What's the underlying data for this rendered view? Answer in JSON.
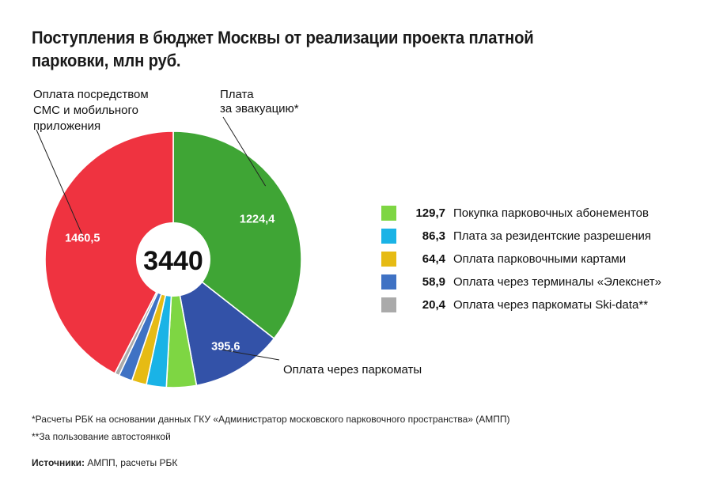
{
  "chart_data": {
    "type": "pie",
    "title": "Поступления в бюджет Москвы от реализации проекта платной парковки, млн руб.",
    "total": "3440",
    "slices": [
      {
        "key": "evac",
        "label": "Плата за эвакуацию*",
        "value": 1224.4,
        "value_label": "1224,4",
        "color": "#3fa535"
      },
      {
        "key": "meters",
        "label": "Оплата через паркоматы",
        "value": 395.6,
        "value_label": "395,6",
        "color": "#3352a8"
      },
      {
        "key": "abon",
        "label": "Покупка парковочных абонементов",
        "value": 129.7,
        "value_label": "129,7",
        "color": "#7ed643"
      },
      {
        "key": "resid",
        "label": "Плата за резидентские разрешения",
        "value": 86.3,
        "value_label": "86,3",
        "color": "#1ab3e6"
      },
      {
        "key": "cards",
        "label": "Оплата парковочными картами",
        "value": 64.4,
        "value_label": "64,4",
        "color": "#e6bb14"
      },
      {
        "key": "term",
        "label": "Оплата через терминалы «Элекснет»",
        "value": 58.9,
        "value_label": "58,9",
        "color": "#3f72c4"
      },
      {
        "key": "ski",
        "label": "Оплата через паркоматы Ski-data**",
        "value": 20.4,
        "value_label": "20,4",
        "color": "#aaaaaa"
      },
      {
        "key": "sms",
        "label": "Оплата посредством СМС и мобильного приложения",
        "value": 1460.5,
        "value_label": "1460,5",
        "color": "#ef3340"
      }
    ],
    "callouts": {
      "sms": [
        "Оплата посредством",
        "СМС и мобильного",
        "приложения"
      ],
      "evac": [
        "Плата",
        "за эвакуацию*"
      ],
      "meters": [
        "Оплата через паркоматы"
      ]
    },
    "legend": [
      {
        "value": "129,7",
        "label": "Покупка парковочных абонементов",
        "color": "#7ed643"
      },
      {
        "value": "86,3",
        "label": "Плата за резидентские разрешения",
        "color": "#1ab3e6"
      },
      {
        "value": "64,4",
        "label": "Оплата парковочными картами",
        "color": "#e6bb14"
      },
      {
        "value": "58,9",
        "label": "Оплата через терминалы «Элекснет»",
        "color": "#3f72c4"
      },
      {
        "value": "20,4",
        "label": "Оплата через паркоматы Ski-data**",
        "color": "#aaaaaa"
      }
    ]
  },
  "footnotes": [
    "*Расчеты РБК на основании данных ГКУ «Администратор московского парковочного пространства» (АМПП)",
    "**За пользование автостоянкой"
  ],
  "sources": {
    "label": "Источники:",
    "text": " АМПП, расчеты РБК"
  }
}
